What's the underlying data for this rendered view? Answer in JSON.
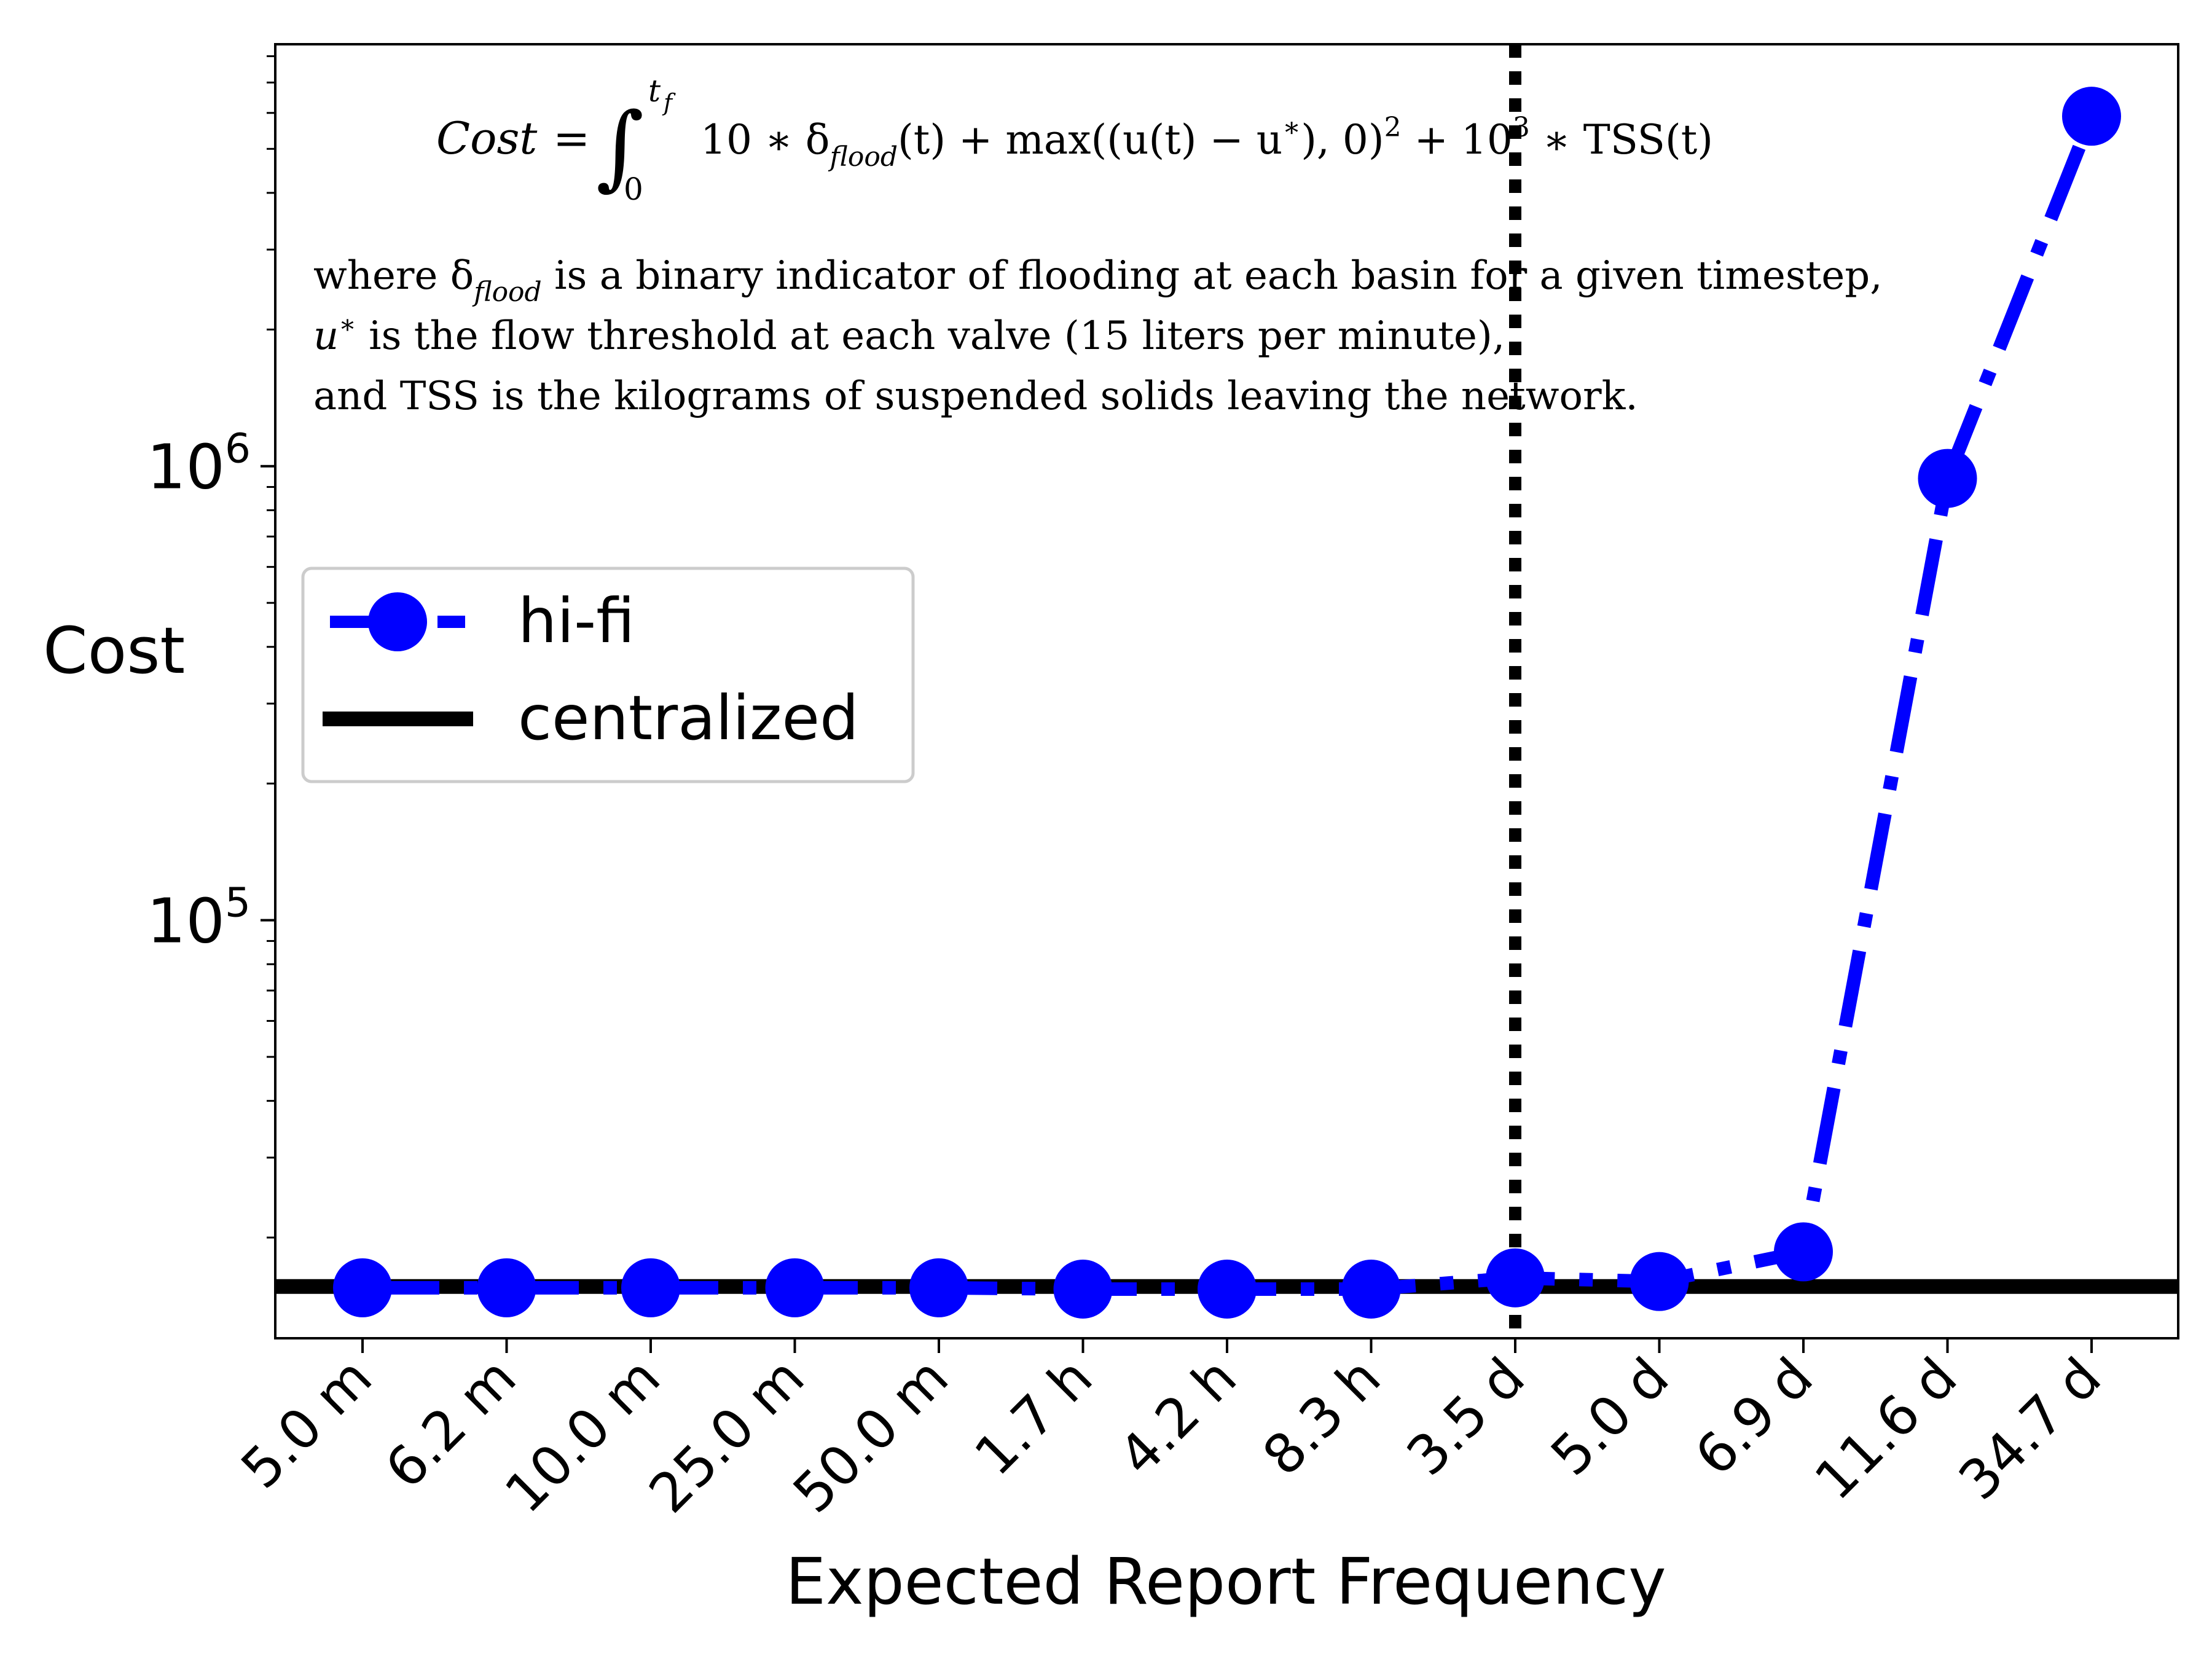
{
  "chart_data": {
    "type": "line",
    "xlabel": "Expected Report Frequency",
    "ylabel": "Cost",
    "yscale": "log",
    "ylim": [
      12000,
      8500000
    ],
    "ytick_values": [
      100000,
      1000000
    ],
    "ytick_labels": [
      {
        "base": "10",
        "exp": "5"
      },
      {
        "base": "10",
        "exp": "6"
      }
    ],
    "categories": [
      "5.0 m",
      "6.2 m",
      "10.0 m",
      "25.0 m",
      "50.0 m",
      "1.7 h",
      "4.2 h",
      "8.3 h",
      "3.5 d",
      "5.0 d",
      "6.9 d",
      "11.6 d",
      "34.7 d"
    ],
    "series": [
      {
        "name": "hi-fi",
        "color": "#0000ff",
        "line_style": "dash-dot",
        "marker": "circle",
        "values": [
          15500,
          15500,
          15500,
          15500,
          15500,
          15400,
          15400,
          15400,
          16300,
          16000,
          18600,
          940000,
          5900000
        ]
      }
    ],
    "reference_lines": [
      {
        "name": "centralized",
        "orientation": "horizontal",
        "value": 15600,
        "color": "#000000",
        "style": "solid"
      },
      {
        "orientation": "vertical",
        "category": "3.5 d",
        "color": "#000000",
        "style": "dotted"
      }
    ],
    "legend": {
      "placement": "center-left",
      "entries": [
        {
          "label": "hi-fi",
          "color": "#0000ff",
          "style": "dash-dot-marker"
        },
        {
          "label": "centralized",
          "color": "#000000",
          "style": "solid"
        }
      ]
    },
    "grid": false,
    "annotation": {
      "formula": {
        "lhs": "Cost",
        "integral_upper": "t",
        "integral_upper_sub": "f",
        "integral_lower": "0",
        "terms": [
          "10 ∗ δ",
          "flood",
          "(t) + max((u(t) − u",
          "∗",
          "), 0)",
          "2",
          " + 10",
          "3",
          " ∗ TSS(t)"
        ]
      },
      "lines": [
        {
          "parts": [
            "where δ",
            "flood",
            " is a binary indicator of flooding at each basin for a given timestep,"
          ]
        },
        {
          "parts": [
            "u",
            "∗",
            " is the flow threshold at each valve (15 liters per minute),"
          ]
        },
        {
          "parts": [
            "and TSS is the kilograms of suspended solids leaving the network."
          ]
        }
      ]
    }
  }
}
